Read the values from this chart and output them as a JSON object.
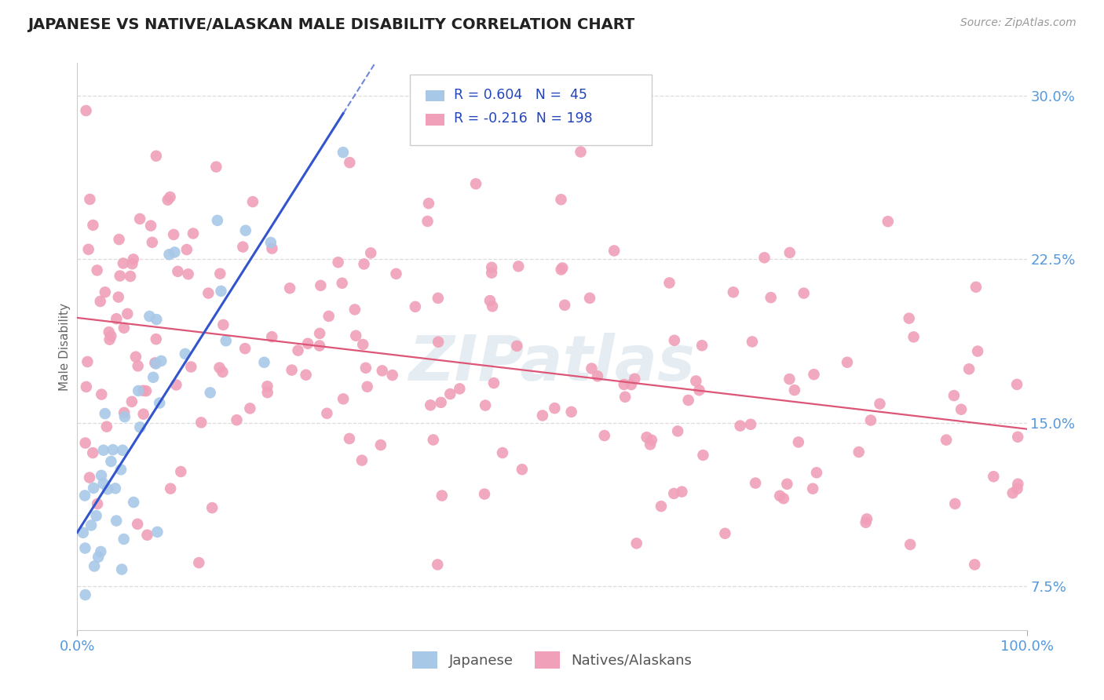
{
  "title": "JAPANESE VS NATIVE/ALASKAN MALE DISABILITY CORRELATION CHART",
  "source_text": "Source: ZipAtlas.com",
  "ylabel": "Male Disability",
  "xlim": [
    0.0,
    1.0
  ],
  "ylim": [
    0.055,
    0.315
  ],
  "yticks": [
    0.075,
    0.15,
    0.225,
    0.3
  ],
  "ytick_labels": [
    "7.5%",
    "15.0%",
    "22.5%",
    "30.0%"
  ],
  "xtick_labels": [
    "0.0%",
    "100.0%"
  ],
  "blue_color": "#a8c8e8",
  "pink_color": "#f0a0b8",
  "trendline_blue": "#3355cc",
  "trendline_pink": "#dd5577",
  "watermark": "ZIPatlas",
  "legend_label1": "Japanese",
  "legend_label2": "Natives/Alaskans",
  "legend_box_color": "#cccccc",
  "title_color": "#222222",
  "source_color": "#999999",
  "ylabel_color": "#666666",
  "tick_color": "#5599dd",
  "grid_color": "#dddddd"
}
